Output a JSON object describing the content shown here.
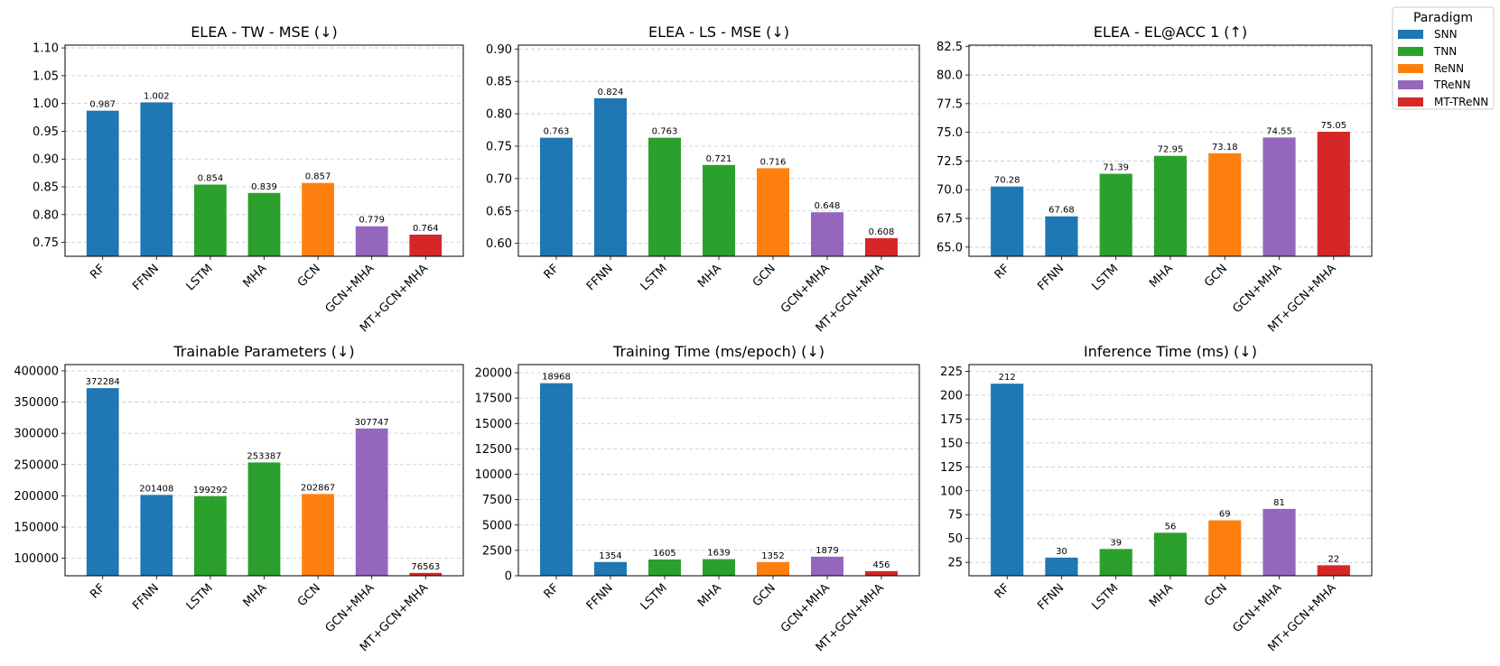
{
  "legend": {
    "title": "Paradigm",
    "placement": "top-right",
    "entries": [
      {
        "label": "SNN",
        "color": "#1f77b4"
      },
      {
        "label": "TNN",
        "color": "#2ca02c"
      },
      {
        "label": "ReNN",
        "color": "#ff7f0e"
      },
      {
        "label": "TReNN",
        "color": "#9467bd"
      },
      {
        "label": "MT-TReNN",
        "color": "#d62728"
      }
    ]
  },
  "chart_data": [
    {
      "type": "bar",
      "title": "ELEA - TW - MSE (↓)",
      "categories": [
        "RF",
        "FFNN",
        "LSTM",
        "MHA",
        "GCN",
        "GCN+MHA",
        "MT+GCN+MHA"
      ],
      "paradigms": [
        "SNN",
        "SNN",
        "TNN",
        "TNN",
        "ReNN",
        "TReNN",
        "MT-TReNN"
      ],
      "values": [
        0.987,
        1.002,
        0.854,
        0.839,
        0.857,
        0.779,
        0.764
      ],
      "labels": [
        "0.987",
        "1.002",
        "0.854",
        "0.839",
        "0.857",
        "0.779",
        "0.764"
      ],
      "ylim": [
        0.725,
        1.105
      ],
      "yticks": [
        0.75,
        0.8,
        0.85,
        0.9,
        0.95,
        1.0,
        1.05,
        1.1
      ],
      "ytick_labels": [
        "0.75",
        "0.80",
        "0.85",
        "0.90",
        "0.95",
        "1.00",
        "1.05",
        "1.10"
      ],
      "grid": true,
      "xlabel": "",
      "ylabel": ""
    },
    {
      "type": "bar",
      "title": "ELEA - LS - MSE (↓)",
      "categories": [
        "RF",
        "FFNN",
        "LSTM",
        "MHA",
        "GCN",
        "GCN+MHA",
        "MT+GCN+MHA"
      ],
      "paradigms": [
        "SNN",
        "SNN",
        "TNN",
        "TNN",
        "ReNN",
        "TReNN",
        "MT-TReNN"
      ],
      "values": [
        0.763,
        0.824,
        0.763,
        0.721,
        0.716,
        0.648,
        0.608
      ],
      "labels": [
        "0.763",
        "0.824",
        "0.763",
        "0.721",
        "0.716",
        "0.648",
        "0.608"
      ],
      "ylim": [
        0.58,
        0.906
      ],
      "yticks": [
        0.6,
        0.65,
        0.7,
        0.75,
        0.8,
        0.85,
        0.9
      ],
      "ytick_labels": [
        "0.60",
        "0.65",
        "0.70",
        "0.75",
        "0.80",
        "0.85",
        "0.90"
      ],
      "grid": true,
      "xlabel": "",
      "ylabel": ""
    },
    {
      "type": "bar",
      "title": "ELEA - EL@ACC 1 (↑)",
      "categories": [
        "RF",
        "FFNN",
        "LSTM",
        "MHA",
        "GCN",
        "GCN+MHA",
        "MT+GCN+MHA"
      ],
      "paradigms": [
        "SNN",
        "SNN",
        "TNN",
        "TNN",
        "ReNN",
        "TReNN",
        "MT-TReNN"
      ],
      "values": [
        70.28,
        67.68,
        71.39,
        72.95,
        73.18,
        74.55,
        75.05
      ],
      "labels": [
        "70.28",
        "67.68",
        "71.39",
        "72.95",
        "73.18",
        "74.55",
        "75.05"
      ],
      "ylim": [
        64.2,
        82.6
      ],
      "yticks": [
        65.0,
        67.5,
        70.0,
        72.5,
        75.0,
        77.5,
        80.0,
        82.5
      ],
      "ytick_labels": [
        "65.0",
        "67.5",
        "70.0",
        "72.5",
        "75.0",
        "77.5",
        "80.0",
        "82.5"
      ],
      "grid": true,
      "xlabel": "",
      "ylabel": ""
    },
    {
      "type": "bar",
      "title": "Trainable Parameters (↓)",
      "categories": [
        "RF",
        "FFNN",
        "LSTM",
        "MHA",
        "GCN",
        "GCN+MHA",
        "MT+GCN+MHA"
      ],
      "paradigms": [
        "SNN",
        "SNN",
        "TNN",
        "TNN",
        "ReNN",
        "TReNN",
        "MT-TReNN"
      ],
      "values": [
        372284,
        201408,
        199292,
        253387,
        202867,
        307747,
        76563
      ],
      "labels": [
        "372284",
        "201408",
        "199292",
        "253387",
        "202867",
        "307747",
        "76563"
      ],
      "ylim": [
        72000,
        410000
      ],
      "yticks": [
        100000,
        150000,
        200000,
        250000,
        300000,
        350000,
        400000
      ],
      "ytick_labels": [
        "100000",
        "150000",
        "200000",
        "250000",
        "300000",
        "350000",
        "400000"
      ],
      "grid": true,
      "xlabel": "",
      "ylabel": ""
    },
    {
      "type": "bar",
      "title": "Training Time (ms/epoch) (↓)",
      "categories": [
        "RF",
        "FFNN",
        "LSTM",
        "MHA",
        "GCN",
        "GCN+MHA",
        "MT+GCN+MHA"
      ],
      "paradigms": [
        "SNN",
        "SNN",
        "TNN",
        "TNN",
        "ReNN",
        "TReNN",
        "MT-TReNN"
      ],
      "values": [
        18968,
        1354,
        1605,
        1639,
        1352,
        1879,
        456
      ],
      "labels": [
        "18968",
        "1354",
        "1605",
        "1639",
        "1352",
        "1879",
        "456"
      ],
      "ylim": [
        0,
        20800
      ],
      "yticks": [
        0,
        2500,
        5000,
        7500,
        10000,
        12500,
        15000,
        17500,
        20000
      ],
      "ytick_labels": [
        "0",
        "2500",
        "5000",
        "7500",
        "10000",
        "12500",
        "15000",
        "17500",
        "20000"
      ],
      "grid": true,
      "xlabel": "",
      "ylabel": ""
    },
    {
      "type": "bar",
      "title": "Inference Time (ms) (↓)",
      "categories": [
        "RF",
        "FFNN",
        "LSTM",
        "MHA",
        "GCN",
        "GCN+MHA",
        "MT+GCN+MHA"
      ],
      "paradigms": [
        "SNN",
        "SNN",
        "TNN",
        "TNN",
        "ReNN",
        "TReNN",
        "MT-TReNN"
      ],
      "values": [
        212,
        30,
        39,
        56,
        69,
        81,
        22
      ],
      "labels": [
        "212",
        "30",
        "39",
        "56",
        "69",
        "81",
        "22"
      ],
      "ylim": [
        11,
        232
      ],
      "yticks": [
        25,
        50,
        75,
        100,
        125,
        150,
        175,
        200,
        225
      ],
      "ytick_labels": [
        "25",
        "50",
        "75",
        "100",
        "125",
        "150",
        "175",
        "200",
        "225"
      ],
      "grid": true,
      "xlabel": "",
      "ylabel": ""
    }
  ]
}
